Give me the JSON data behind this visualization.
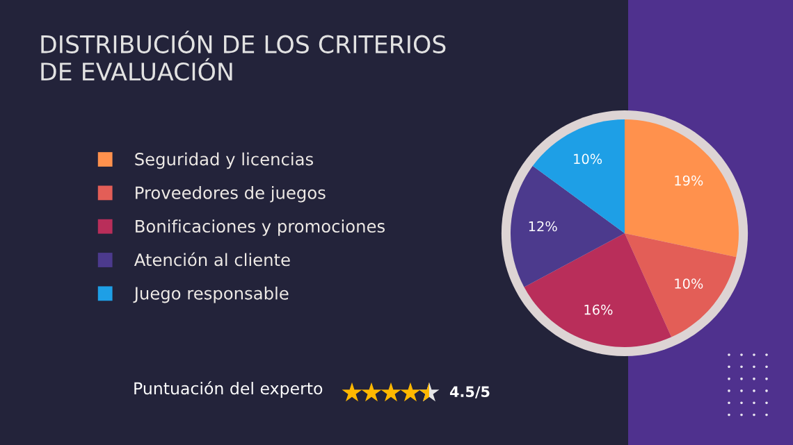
{
  "chart_data": {
    "type": "pie",
    "title": "DISTRIBUCIÓN DE LOS CRITERIOS\nDE EVALUACIÓN",
    "categories": [
      "Seguridad y licencias",
      "Proveedores de juegos",
      "Bonificaciones y promociones",
      "Atención al cliente",
      "Juego responsable"
    ],
    "values": [
      19,
      10,
      16,
      12,
      10
    ],
    "colors": [
      "#ff914d",
      "#e35e57",
      "#b92e5a",
      "#4c3a8d",
      "#1e9fe6"
    ],
    "value_labels": [
      "19%",
      "10%",
      "16%",
      "12%",
      "10%"
    ],
    "legend": "left",
    "annotations": [
      "Puntuación del experto",
      "4.5/5"
    ]
  }
}
